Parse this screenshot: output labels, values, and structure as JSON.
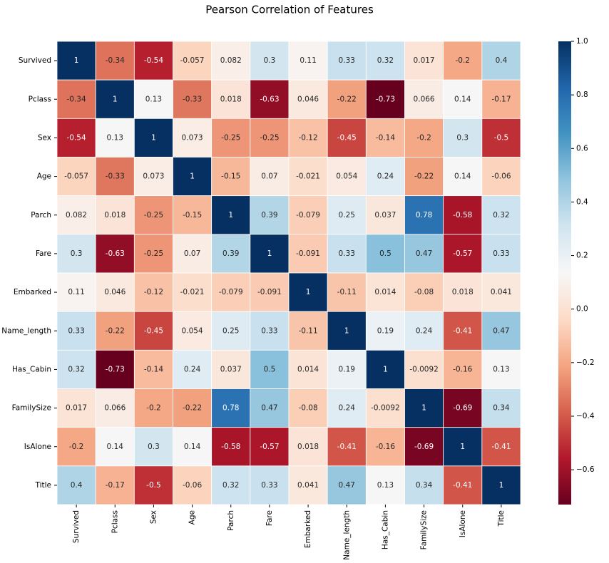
{
  "chart_data": {
    "type": "heatmap",
    "title": "Pearson Correlation of Features",
    "categories": [
      "Survived",
      "Pclass",
      "Sex",
      "Age",
      "Parch",
      "Fare",
      "Embarked",
      "Name_length",
      "Has_Cabin",
      "FamilySize",
      "IsAlone",
      "Title"
    ],
    "values": [
      [
        1,
        -0.34,
        -0.54,
        -0.057,
        0.082,
        0.3,
        0.11,
        0.33,
        0.32,
        0.017,
        -0.2,
        0.4
      ],
      [
        -0.34,
        1,
        0.13,
        -0.33,
        0.018,
        -0.63,
        0.046,
        -0.22,
        -0.73,
        0.066,
        0.14,
        -0.17
      ],
      [
        -0.54,
        0.13,
        1,
        0.073,
        -0.25,
        -0.25,
        -0.12,
        -0.45,
        -0.14,
        -0.2,
        0.3,
        -0.5
      ],
      [
        -0.057,
        -0.33,
        0.073,
        1,
        -0.15,
        0.07,
        -0.021,
        0.054,
        0.24,
        -0.22,
        0.14,
        -0.06
      ],
      [
        0.082,
        0.018,
        -0.25,
        -0.15,
        1,
        0.39,
        -0.079,
        0.25,
        0.037,
        0.78,
        -0.58,
        0.32
      ],
      [
        0.3,
        -0.63,
        -0.25,
        0.07,
        0.39,
        1,
        -0.091,
        0.33,
        0.5,
        0.47,
        -0.57,
        0.33
      ],
      [
        0.11,
        0.046,
        -0.12,
        -0.021,
        -0.079,
        -0.091,
        1,
        -0.11,
        0.014,
        -0.08,
        0.018,
        0.041
      ],
      [
        0.33,
        -0.22,
        -0.45,
        0.054,
        0.25,
        0.33,
        -0.11,
        1,
        0.19,
        0.24,
        -0.41,
        0.47
      ],
      [
        0.32,
        -0.73,
        -0.14,
        0.24,
        0.037,
        0.5,
        0.014,
        0.19,
        1,
        -0.0092,
        -0.16,
        0.13
      ],
      [
        0.017,
        0.066,
        -0.2,
        -0.22,
        0.78,
        0.47,
        -0.08,
        0.24,
        -0.0092,
        1,
        -0.69,
        0.34
      ],
      [
        -0.2,
        0.14,
        0.3,
        0.14,
        -0.58,
        -0.57,
        0.018,
        -0.41,
        -0.16,
        -0.69,
        1,
        -0.41
      ],
      [
        0.4,
        -0.17,
        -0.5,
        -0.06,
        0.32,
        0.33,
        0.041,
        0.47,
        0.13,
        0.34,
        -0.41,
        1
      ]
    ],
    "colormap": [
      "#67001f",
      "#b2182b",
      "#d6604d",
      "#f4a582",
      "#fddbc7",
      "#f7f7f7",
      "#d1e5f0",
      "#92c5de",
      "#4393c3",
      "#2166ac",
      "#053061"
    ],
    "clim": [
      -0.73,
      1
    ],
    "cticks": [
      {
        "value": -0.6,
        "label": "−0.6"
      },
      {
        "value": -0.4,
        "label": "−0.4"
      },
      {
        "value": -0.2,
        "label": "−0.2"
      },
      {
        "value": 0,
        "label": "0.0"
      },
      {
        "value": 0.2,
        "label": "0.2"
      },
      {
        "value": 0.4,
        "label": "0.4"
      },
      {
        "value": 0.6,
        "label": "0.6"
      },
      {
        "value": 0.8,
        "label": "0.8"
      },
      {
        "value": 1,
        "label": "1.0"
      }
    ],
    "annotate": true
  }
}
